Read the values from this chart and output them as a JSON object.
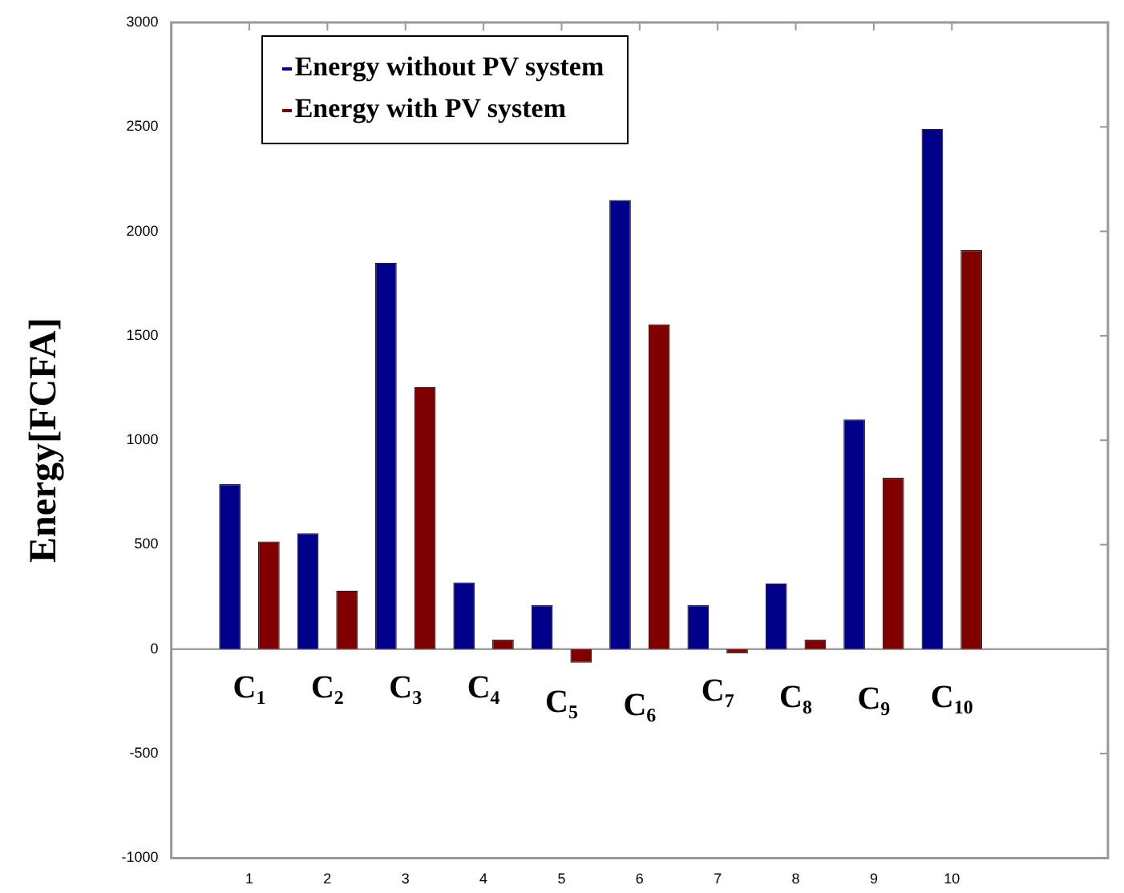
{
  "chart_data": {
    "type": "bar",
    "ylabel": "Energy[FCFA]",
    "x": [
      1,
      2,
      3,
      4,
      5,
      6,
      7,
      8,
      9,
      10
    ],
    "series": [
      {
        "name": "Energy without PV system",
        "color": "#00008b",
        "values": [
          790,
          555,
          1850,
          320,
          210,
          2150,
          210,
          315,
          1100,
          2490
        ]
      },
      {
        "name": "Energy with PV system",
        "color": "#800000",
        "values": [
          515,
          280,
          1255,
          45,
          -65,
          1555,
          -20,
          45,
          820,
          1910
        ]
      }
    ],
    "xlim": [
      0,
      12
    ],
    "xticks": [
      1,
      2,
      3,
      4,
      5,
      6,
      7,
      8,
      9,
      10
    ],
    "ylim": [
      -1000,
      3000
    ],
    "yticks": [
      -1000,
      -500,
      0,
      500,
      1000,
      1500,
      2000,
      2500,
      3000
    ],
    "ref_lines": [
      {
        "axis": "y",
        "value": 0,
        "color": "#a0a0a0"
      }
    ],
    "annotations": [
      "C$_{1}$",
      "C$_{2}$",
      "C$_{3}$",
      "C$_{4}$",
      "C$_{5}$",
      "C$_{6}$",
      "C$_{7}$",
      "C$_{8}$",
      "C$_{9}$",
      "C$_{10}$"
    ],
    "grid": false,
    "legend": "top left"
  }
}
